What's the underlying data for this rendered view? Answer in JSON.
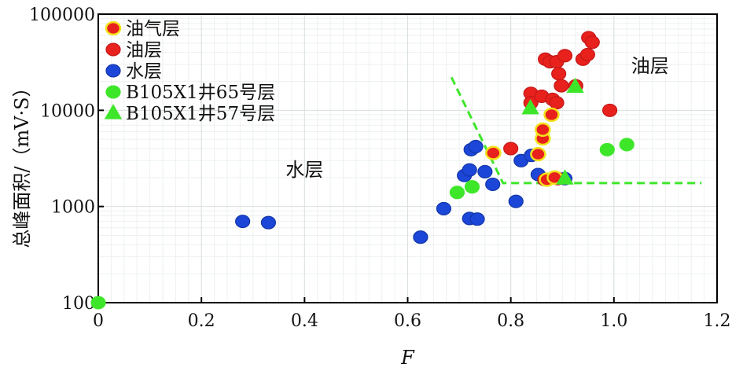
{
  "chart_data": {
    "type": "scatter",
    "xlabel": "F",
    "ylabel": "总峰面积/（mV·S）",
    "xlim": [
      0,
      1.2
    ],
    "ylim": [
      100,
      100000
    ],
    "yscale": "log",
    "x_ticks": [
      "0",
      "0.2",
      "0.4",
      "0.6",
      "0.8",
      "1.0",
      "1.2"
    ],
    "x_tick_values": [
      0,
      0.2,
      0.4,
      0.6,
      0.8,
      1.0,
      1.2
    ],
    "y_ticks": [
      "100",
      "1000",
      "10000",
      "100000"
    ],
    "y_tick_values": [
      100,
      1000,
      10000,
      100000
    ],
    "grid": true,
    "legend_position": "top-left",
    "annotations": [
      {
        "text": "水层",
        "x": 0.4,
        "y": 2400
      },
      {
        "text": "油层",
        "x": 1.07,
        "y": 29000
      }
    ],
    "boundary_line": [
      [
        0.685,
        22000
      ],
      [
        0.785,
        1750
      ],
      [
        1.17,
        1750
      ]
    ],
    "series": [
      {
        "name": "油气层",
        "marker": "circle",
        "fill": "#e8211c",
        "stroke": "#f2e21a",
        "points": [
          [
            0.766,
            3600
          ],
          [
            0.853,
            3500
          ],
          [
            0.862,
            5100
          ],
          [
            0.862,
            6300
          ],
          [
            0.87,
            1900
          ],
          [
            0.879,
            9000
          ],
          [
            0.885,
            2000
          ]
        ]
      },
      {
        "name": "油层",
        "marker": "circle",
        "fill": "#e8211c",
        "stroke": "#c41818",
        "points": [
          [
            0.8,
            4000
          ],
          [
            0.839,
            15000
          ],
          [
            0.839,
            12000
          ],
          [
            0.86,
            14000
          ],
          [
            0.867,
            34000
          ],
          [
            0.876,
            32000
          ],
          [
            0.889,
            32000
          ],
          [
            0.893,
            24000
          ],
          [
            0.881,
            13000
          ],
          [
            0.889,
            12000
          ],
          [
            0.898,
            18000
          ],
          [
            0.905,
            37000
          ],
          [
            0.926,
            18000
          ],
          [
            0.94,
            34000
          ],
          [
            0.949,
            38000
          ],
          [
            0.951,
            57000
          ],
          [
            0.958,
            51000
          ],
          [
            0.992,
            10000
          ],
          [
            0.866,
            1900
          ],
          [
            0.891,
            1950
          ]
        ]
      },
      {
        "name": "水层",
        "marker": "circle",
        "fill": "#1c46d8",
        "stroke": "#1236a8",
        "points": [
          [
            0.28,
            700
          ],
          [
            0.33,
            680
          ],
          [
            0.625,
            480
          ],
          [
            0.67,
            950
          ],
          [
            0.71,
            2100
          ],
          [
            0.72,
            2400
          ],
          [
            0.72,
            750
          ],
          [
            0.735,
            740
          ],
          [
            0.723,
            3900
          ],
          [
            0.732,
            4200
          ],
          [
            0.75,
            2300
          ],
          [
            0.765,
            1700
          ],
          [
            0.81,
            1130
          ],
          [
            0.82,
            3000
          ],
          [
            0.84,
            3400
          ],
          [
            0.853,
            2150
          ],
          [
            0.905,
            1950
          ]
        ]
      },
      {
        "name": "B105X1井65号层",
        "marker": "circle",
        "fill": "#3ee62a",
        "stroke": "#3ee62a",
        "points": [
          [
            0.0,
            100
          ],
          [
            0.696,
            1400
          ],
          [
            0.725,
            1600
          ],
          [
            0.987,
            3900
          ],
          [
            1.025,
            4400
          ]
        ]
      },
      {
        "name": "B105X1井57号层",
        "marker": "triangle",
        "fill": "#3ee62a",
        "stroke": "#3ee62a",
        "points": [
          [
            0.838,
            10500
          ],
          [
            0.905,
            1950
          ],
          [
            0.925,
            17500
          ]
        ]
      }
    ]
  }
}
